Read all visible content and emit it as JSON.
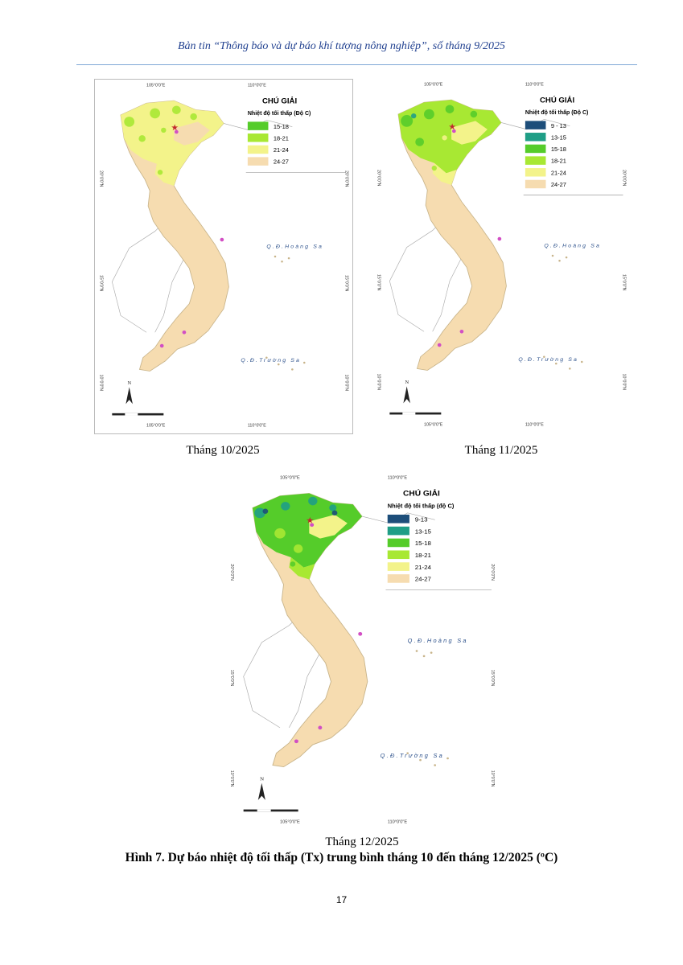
{
  "header": "Bản tin “Thông báo và dự báo khí tượng nông nghiệp”, số tháng 9/2025",
  "maps": [
    {
      "caption": "Tháng 10/2025",
      "legend_title": "CHÚ GIẢI",
      "legend_subtitle": "Nhiệt độ tối thấp (Độ C)",
      "legend": [
        {
          "label": "15-18",
          "color": "#55cc2a"
        },
        {
          "label": "18-21",
          "color": "#a8e833"
        },
        {
          "label": "21-24",
          "color": "#f3f38a"
        },
        {
          "label": "24-27",
          "color": "#f6dcb0"
        }
      ],
      "coords": {
        "lon_top_left": "105°0'0\"E",
        "lon_top_right": "110°0'0\"E",
        "lon_bottom_left": "105°0'0\"E",
        "lon_bottom_right": "110°0'0\"E",
        "lat_20": "20°0'0\"N",
        "lat_15": "15°0'0\"N",
        "lat_10": "10°0'0\"N"
      },
      "sea_labels": [
        "Q.Đ.Hoàng Sa",
        "Q.Đ.Trường Sa"
      ]
    },
    {
      "caption": "Tháng 11/2025",
      "legend_title": "CHÚ GIẢI",
      "legend_subtitle": "Nhiệt độ tối thấp (Độ C)",
      "legend": [
        {
          "label": "9 - 13",
          "color": "#1d4e7a"
        },
        {
          "label": "13-15",
          "color": "#1f9e86"
        },
        {
          "label": "15-18",
          "color": "#55cc2a"
        },
        {
          "label": "18-21",
          "color": "#a8e833"
        },
        {
          "label": "21-24",
          "color": "#f3f38a"
        },
        {
          "label": "24-27",
          "color": "#f6dcb0"
        }
      ],
      "coords": {
        "lon_top_left": "105°0'0\"E",
        "lon_top_right": "110°0'0\"E",
        "lon_bottom_left": "105°0'0\"E",
        "lon_bottom_right": "110°0'0\"E",
        "lat_20": "20°0'0\"N",
        "lat_15": "15°0'0\"N",
        "lat_10": "10°0'0\"N"
      },
      "sea_labels": [
        "Q.Đ.Hoàng Sa",
        "Q.Đ.Trường Sa"
      ]
    },
    {
      "caption": "Tháng 12/2025",
      "legend_title": "CHÚ GIẢI",
      "legend_subtitle": "Nhiệt độ tối thấp (độ C)",
      "legend": [
        {
          "label": "9-13",
          "color": "#1d4e7a"
        },
        {
          "label": "13-15",
          "color": "#1f9e86"
        },
        {
          "label": "15-18",
          "color": "#55cc2a"
        },
        {
          "label": "18-21",
          "color": "#a8e833"
        },
        {
          "label": "21-24",
          "color": "#f3f38a"
        },
        {
          "label": "24-27",
          "color": "#f6dcb0"
        }
      ],
      "coords": {
        "lon_top_left": "105°0'0\"E",
        "lon_top_right": "110°0'0\"E",
        "lon_bottom_left": "105°0'0\"E",
        "lon_bottom_right": "110°0'0\"E",
        "lat_20": "20°0'0\"N",
        "lat_15": "15°0'0\"N",
        "lat_10": "10°0'0\"N"
      },
      "sea_labels": [
        "Q.Đ.Hoàng Sa",
        "Q.Đ.Trường Sa"
      ]
    }
  ],
  "figure_title": "Hình 7. Dự báo nhiệt độ tối thấp (Tx) trung bình tháng 10 đến tháng 12/2025 (ºC)",
  "page_number": "17"
}
